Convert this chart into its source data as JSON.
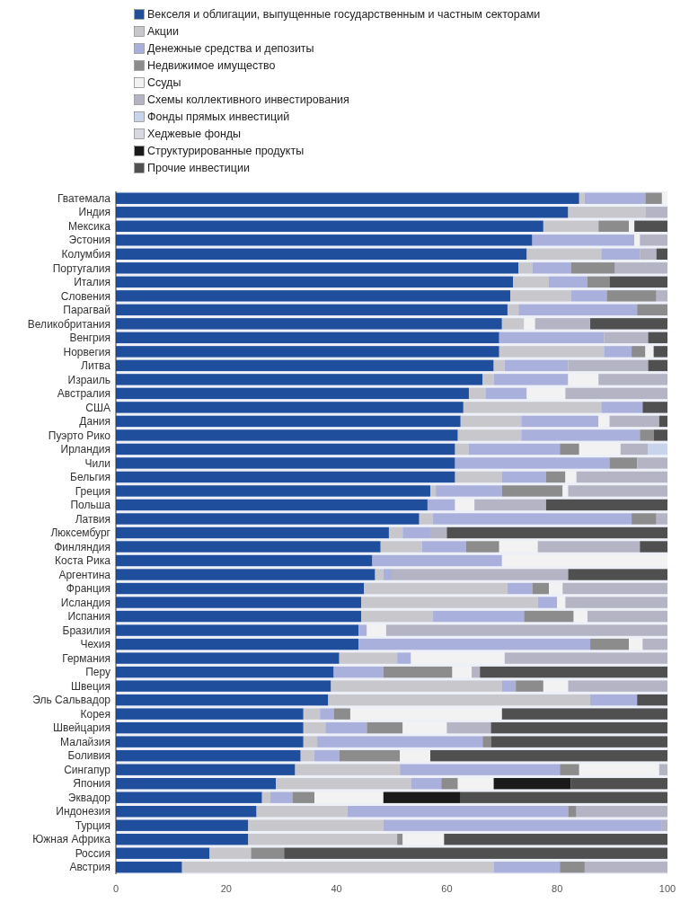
{
  "chart_data": {
    "type": "bar",
    "orientation": "horizontal",
    "stacked": true,
    "legend": "top left",
    "grid": false,
    "xlim": [
      0,
      100
    ],
    "xticks": [
      0,
      20,
      40,
      60,
      80,
      100
    ],
    "categories": [
      "Гватемала",
      "Индия",
      "Мексика",
      "Эстония",
      "Колумбия",
      "Португалия",
      "Италия",
      "Словения",
      "Парагвай",
      "Великобритания",
      "Венгрия",
      "Норвегия",
      "Литва",
      "Израиль",
      "Австралия",
      "США",
      "Дания",
      "Пуэрто Рико",
      "Ирландия",
      "Чили",
      "Бельгия",
      "Греция",
      "Польша",
      "Латвия",
      "Люксембург",
      "Финляндия",
      "Коста Рика",
      "Аргентина",
      "Франция",
      "Исландия",
      "Испания",
      "Бразилия",
      "Чехия",
      "Германия",
      "Перу",
      "Швеция",
      "Эль Сальвадор",
      "Корея",
      "Швейцария",
      "Малайзия",
      "Боливия",
      "Сингапур",
      "Япония",
      "Эквадор",
      "Индонезия",
      "Турция",
      "Южная Африка",
      "Россия",
      "Австрия"
    ],
    "series": [
      {
        "name": "Векселя и облигации, выпущенные государственным и частным секторами",
        "color": "#1f4e9c",
        "values": [
          84,
          82,
          77.5,
          75.5,
          74.5,
          73,
          72,
          71.5,
          71,
          70,
          69.5,
          69.5,
          68.5,
          66.5,
          64,
          63,
          62.5,
          62,
          61.5,
          61.5,
          61.5,
          57,
          56.5,
          55,
          49.5,
          48,
          46.5,
          47,
          45,
          44.5,
          44.5,
          44,
          44,
          40.5,
          39.5,
          39,
          38.5,
          34,
          34,
          34,
          33.5,
          32.5,
          29,
          26.5,
          25.5,
          24,
          24,
          17,
          12
        ]
      },
      {
        "name": "Акции",
        "color": "#c8c8cc",
        "values": [
          1,
          14,
          10,
          0,
          13.5,
          2.5,
          6.5,
          11,
          2,
          4,
          0,
          19,
          2,
          2,
          3,
          25,
          11,
          11.5,
          2.5,
          0,
          8.5,
          1,
          0,
          2.5,
          2.5,
          7.5,
          0,
          1.5,
          26,
          32,
          13,
          0,
          0,
          10.5,
          0,
          31,
          47.5,
          3,
          4,
          2.5,
          2.5,
          19,
          24.5,
          1.5,
          16.5,
          24.5,
          27,
          7.5,
          56.5
        ]
      },
      {
        "name": "Денежные средства и депозиты",
        "color": "#aab0dc",
        "values": [
          11,
          0,
          0,
          18.5,
          7,
          7,
          7,
          6.5,
          21.5,
          0,
          19,
          5,
          11.5,
          13.5,
          7.5,
          7.5,
          14,
          21.5,
          16.5,
          28,
          8,
          12,
          5,
          36,
          5,
          8,
          23.5,
          1.5,
          4.5,
          3.5,
          16.5,
          1.5,
          42,
          2.5,
          9,
          2.5,
          8.5,
          2.5,
          7.5,
          30,
          4.5,
          29,
          5.5,
          4,
          40,
          50.5,
          0,
          0,
          12
        ]
      },
      {
        "name": "Недвижимое имущество",
        "color": "#8c8c8c",
        "values": [
          3,
          0,
          5.5,
          0,
          0,
          8,
          4,
          9,
          5.5,
          0,
          0,
          2.5,
          0,
          0,
          0,
          0,
          0,
          2.5,
          3.5,
          5,
          3.5,
          11,
          0,
          4.5,
          0,
          6,
          0,
          0,
          3,
          0,
          9,
          0,
          7,
          0,
          12.5,
          5,
          0,
          3,
          6.5,
          1.5,
          11,
          3.5,
          3,
          4,
          1.5,
          0,
          1,
          6,
          4.5
        ]
      },
      {
        "name": "Ссуды",
        "color": "#f2f2f2",
        "values": [
          1,
          0,
          1,
          1,
          0,
          0,
          0,
          0,
          0,
          2,
          0,
          1.5,
          0,
          5.5,
          7,
          0,
          2,
          0,
          7.5,
          0,
          2,
          1,
          3.5,
          0,
          0,
          7,
          30,
          0,
          2.5,
          1.5,
          2.5,
          3.5,
          2.5,
          17,
          3.5,
          4.5,
          0,
          27.5,
          8,
          0,
          5.5,
          14.5,
          6.5,
          12.5,
          0,
          0,
          7.5,
          0,
          0
        ]
      },
      {
        "name": "Схемы коллективного инвестирования",
        "color": "#b4b4c4",
        "values": [
          0,
          4,
          0,
          5,
          3,
          9.5,
          0,
          2,
          0,
          10,
          8,
          0,
          14.5,
          12.5,
          18.5,
          0,
          9,
          0,
          5,
          5.5,
          16.5,
          18,
          13,
          2,
          3,
          18.5,
          0,
          32,
          19,
          18.5,
          14.5,
          51,
          4.5,
          29.5,
          1.5,
          18,
          0,
          0,
          8,
          0,
          0,
          1.5,
          0,
          0,
          16.5,
          1,
          0,
          0,
          15
        ]
      },
      {
        "name": "Фонды прямых инвестиций",
        "color": "#c8d4ec",
        "values": [
          0,
          0,
          0,
          0,
          0,
          0,
          0,
          0,
          0,
          0,
          0,
          0,
          0,
          0,
          0,
          0,
          0,
          0,
          3.5,
          0,
          0,
          0,
          0,
          0,
          0,
          0,
          0,
          0,
          0,
          0,
          0,
          0,
          0,
          0,
          0,
          0,
          0,
          0,
          0,
          0,
          0,
          0,
          0,
          0,
          0,
          0,
          0,
          0,
          0
        ]
      },
      {
        "name": "Хеджевые фонды",
        "color": "#d8d8e0",
        "values": [
          0,
          0,
          0,
          0,
          0,
          0,
          0,
          0,
          0,
          0,
          0,
          0,
          0,
          0,
          0,
          0,
          0,
          0,
          0,
          0,
          0,
          0,
          0,
          0,
          0,
          0,
          0,
          0,
          0,
          0,
          0,
          0,
          0,
          0,
          0,
          0,
          0,
          0,
          0,
          0,
          0,
          0,
          0,
          0,
          0,
          0,
          0,
          0,
          0
        ]
      },
      {
        "name": "Структурированные продукты",
        "color": "#1a1a1a",
        "values": [
          0,
          0,
          0,
          0,
          0,
          0,
          0,
          0,
          0,
          0,
          0,
          0,
          0,
          0,
          0,
          0,
          0,
          0,
          0,
          0,
          0,
          0,
          0,
          0,
          0,
          0,
          0,
          0,
          0,
          0,
          0,
          0,
          0,
          0,
          0,
          0,
          0,
          0,
          0,
          0,
          0,
          0,
          14,
          14,
          0,
          0,
          0,
          0,
          0
        ]
      },
      {
        "name": "Прочие инвестиции",
        "color": "#505050",
        "values": [
          0,
          0,
          6,
          0,
          2,
          0,
          10.5,
          0,
          0,
          14,
          3.5,
          2.5,
          3.5,
          0,
          0,
          4.5,
          1.5,
          2.5,
          0,
          0,
          0,
          0,
          22,
          0,
          40,
          5,
          0,
          18,
          0,
          0,
          0,
          0,
          0,
          0,
          34,
          0,
          5.5,
          30,
          32,
          32,
          43,
          0,
          17.5,
          37.5,
          0,
          0,
          40.5,
          69.5,
          0
        ]
      }
    ]
  }
}
